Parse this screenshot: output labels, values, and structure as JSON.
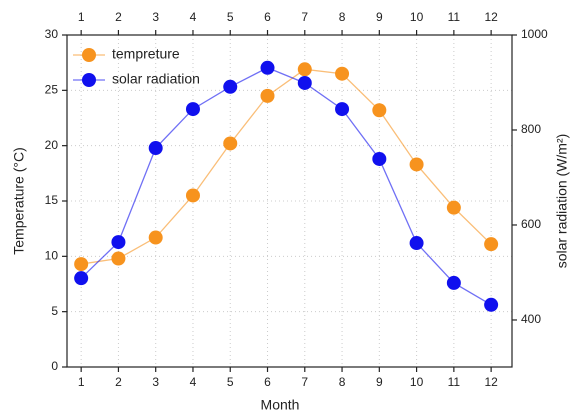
{
  "chart_data": {
    "type": "line",
    "x": [
      1,
      2,
      3,
      4,
      5,
      6,
      7,
      8,
      9,
      10,
      11,
      12
    ],
    "xlabel": "Month",
    "ylabel": "Temperature (°C)",
    "y2label": "solar radiation (W/m²)",
    "series": [
      {
        "name": "tempreture",
        "color": "#f7931e",
        "values": [
          9.3,
          9.8,
          11.7,
          15.5,
          20.2,
          24.5,
          26.9,
          26.5,
          23.2,
          18.3,
          14.4,
          11.1
        ]
      },
      {
        "name": "solar radiation",
        "color": "#1010ee",
        "axis": "y2",
        "values": [
          488,
          564,
          762,
          844,
          891,
          931,
          899,
          844,
          739,
          562,
          478,
          432
        ]
      }
    ],
    "xlim": [
      0.62,
      12.56
    ],
    "xticks": [
      1,
      2,
      3,
      4,
      5,
      6,
      7,
      8,
      9,
      10,
      11,
      12
    ],
    "ylim": [
      0,
      30
    ],
    "yticks": [
      0,
      5,
      10,
      15,
      20,
      25,
      30
    ],
    "y2lim": [
      301,
      1000
    ],
    "y2ticks": [
      400,
      600,
      800,
      1000
    ],
    "grid": true,
    "legend": "top-left"
  }
}
